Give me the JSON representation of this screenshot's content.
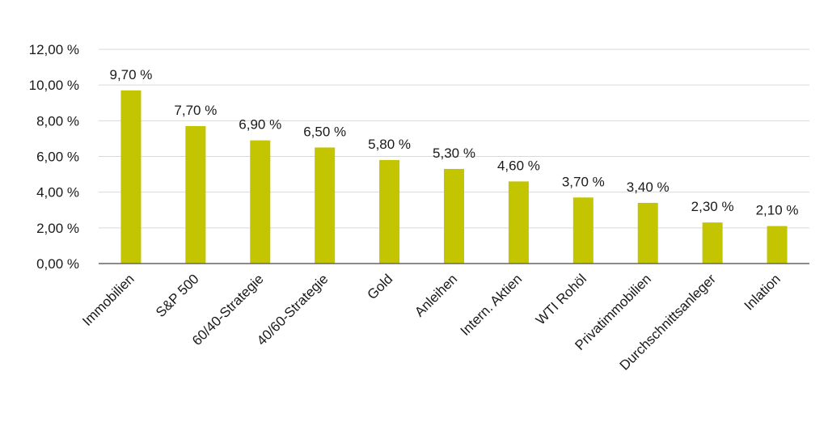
{
  "chart_data": {
    "type": "bar",
    "title": "",
    "xlabel": "",
    "ylabel": "",
    "categories": [
      "Immobilien",
      "S&P 500",
      "60/40-Strategie",
      "40/60-Strategie",
      "Gold",
      "Anleihen",
      "Intern. Aktien",
      "WTI Rohöl",
      "Privatimmobilien",
      "Durchschnittsanleger",
      "Inlation"
    ],
    "values": [
      9.7,
      7.7,
      6.9,
      6.5,
      5.8,
      5.3,
      4.6,
      3.7,
      3.4,
      2.3,
      2.1
    ],
    "data_labels": [
      "9,70 %",
      "7,70 %",
      "6,90 %",
      "6,50 %",
      "5,80 %",
      "5,30 %",
      "4,60 %",
      "3,70 %",
      "3,40 %",
      "2,30 %",
      "2,10 %"
    ],
    "y_ticks": [
      0,
      2,
      4,
      6,
      8,
      10,
      12
    ],
    "y_tick_labels": [
      "0,00 %",
      "2,00 %",
      "4,00 %",
      "6,00 %",
      "8,00 %",
      "10,00 %",
      "12,00 %"
    ],
    "ylim": [
      0,
      12
    ],
    "grid": true,
    "legend": "none",
    "bar_color": "#c3c500"
  }
}
